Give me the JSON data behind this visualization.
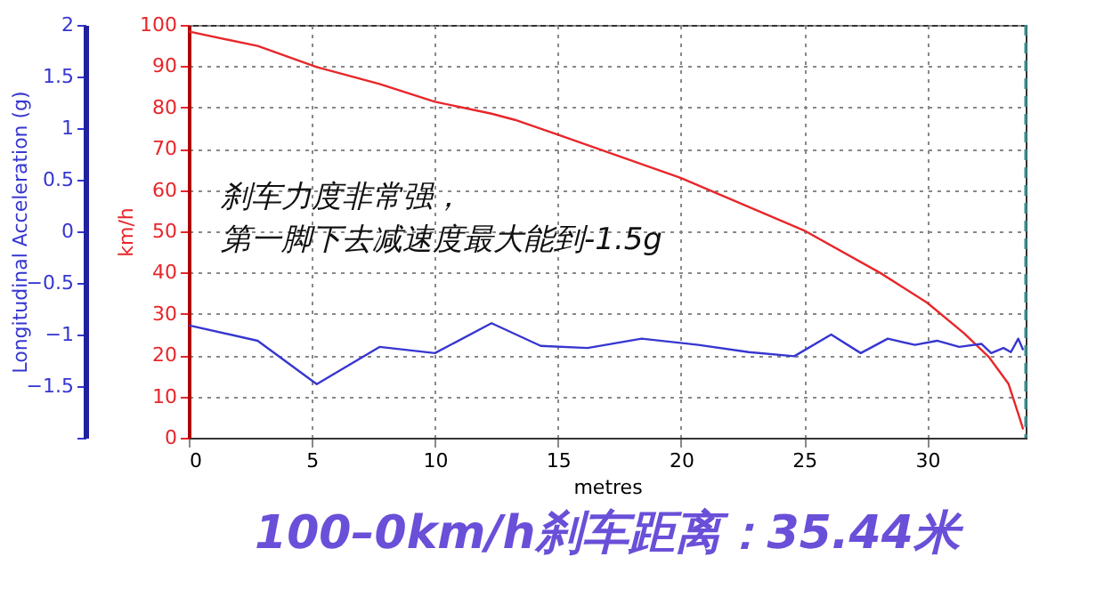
{
  "chart_data": {
    "type": "line",
    "title": "100–0km/h刹车距离：35.44米",
    "xlabel": "metres",
    "ylabel": "km/h",
    "y2label": "Longitudinal Acceleration (g)",
    "annotations": [
      "刹车力度非常强，",
      "第一脚下去减速度最大能到-1.5g"
    ],
    "xlim": [
      0,
      34
    ],
    "xticks": [
      0,
      5,
      10,
      15,
      20,
      25,
      30
    ],
    "ylim": [
      0,
      100
    ],
    "yticks": [
      0,
      10,
      20,
      30,
      40,
      50,
      60,
      70,
      80,
      90,
      100
    ],
    "y2lim": [
      -2,
      2
    ],
    "y2ticks": [
      {
        "value": -2,
        "label": null
      },
      -1.5,
      -1,
      -0.5,
      0,
      0.5,
      1,
      1.5,
      2
    ],
    "grid": true,
    "line_style": "solid",
    "marker": "none",
    "ref_lines": [
      {
        "axis": "x",
        "value": 34,
        "label": null,
        "color": "#3a8f8f",
        "line_style": "dashed"
      }
    ],
    "series": [
      {
        "color": "#e8262a",
        "x": [
          0,
          2.8,
          5.2,
          7.75,
          10,
          12.3,
          13.25,
          15,
          20,
          25,
          28.1,
          30,
          31.5,
          32.5,
          33.3,
          33.75,
          33.9
        ],
        "values": [
          98.4,
          94.9,
          89.8,
          85.7,
          81.4,
          78.5,
          77,
          73.4,
          62.9,
          50.2,
          39.9,
          32.7,
          25.3,
          19.6,
          13.1,
          4.9,
          2
        ]
      },
      {
        "color": "#3636d0",
        "axis": "y2",
        "x": [
          0,
          2.8,
          5.2,
          7.75,
          10,
          12.3,
          14.3,
          16.2,
          18.4,
          20.7,
          22.75,
          24.6,
          26.1,
          27.3,
          28.4,
          29.5,
          30.4,
          31.3,
          32.2,
          32.6,
          33.1,
          33.4,
          33.7,
          33.9
        ],
        "values": [
          -0.91,
          -1.06,
          -1.48,
          -1.12,
          -1.18,
          -0.89,
          -1.11,
          -1.13,
          -1.04,
          -1.1,
          -1.17,
          -1.21,
          -1.0,
          -1.18,
          -1.04,
          -1.1,
          -1.06,
          -1.12,
          -1.09,
          -1.18,
          -1.13,
          -1.17,
          -1.04,
          -1.15
        ]
      }
    ]
  }
}
